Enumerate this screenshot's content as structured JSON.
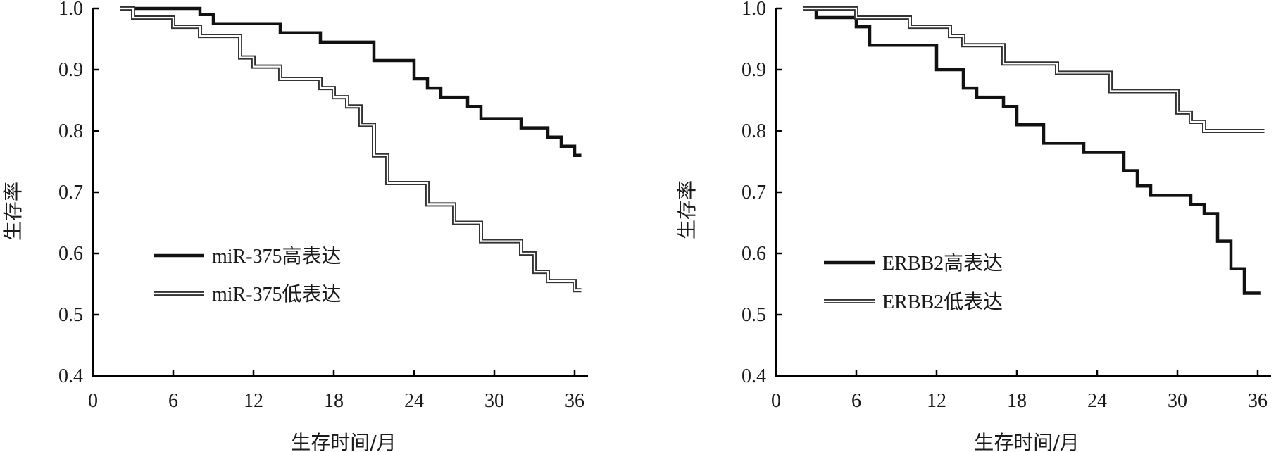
{
  "chart_data": [
    {
      "type": "line",
      "step": true,
      "title": "",
      "xlabel": "生存时间/月",
      "ylabel": "生存率",
      "xlim": [
        0,
        37
      ],
      "ylim": [
        0.4,
        1.0
      ],
      "xticks": [
        "0",
        "6",
        "12",
        "18",
        "24",
        "30",
        "36"
      ],
      "yticks": [
        "0.4",
        "0.5",
        "0.6",
        "0.7",
        "0.8",
        "0.9",
        "1.0"
      ],
      "legend_position": "lower-left",
      "series": [
        {
          "name": "miR-375高表达",
          "style": "solid",
          "color": "#111111",
          "x": [
            2,
            8,
            9,
            14,
            17,
            21,
            24,
            25,
            26,
            28,
            29,
            32,
            34,
            35,
            36,
            36.5
          ],
          "y": [
            1.0,
            0.99,
            0.975,
            0.96,
            0.945,
            0.915,
            0.885,
            0.87,
            0.855,
            0.84,
            0.82,
            0.805,
            0.79,
            0.775,
            0.76,
            0.76
          ]
        },
        {
          "name": "miR-375低表达",
          "style": "double",
          "color": "#333333",
          "x": [
            2,
            3,
            6,
            8,
            11,
            12,
            14,
            17,
            18,
            19,
            20,
            21,
            22,
            25,
            27,
            29,
            32,
            33,
            34,
            36,
            36.5
          ],
          "y": [
            1.0,
            0.985,
            0.97,
            0.955,
            0.92,
            0.905,
            0.885,
            0.87,
            0.855,
            0.84,
            0.81,
            0.76,
            0.715,
            0.68,
            0.65,
            0.62,
            0.6,
            0.57,
            0.555,
            0.54,
            0.54
          ]
        }
      ]
    },
    {
      "type": "line",
      "step": true,
      "title": "",
      "xlabel": "生存时间/月",
      "ylabel": "生存率",
      "xlim": [
        0,
        37
      ],
      "ylim": [
        0.4,
        1.0
      ],
      "xticks": [
        "0",
        "6",
        "12",
        "18",
        "24",
        "30",
        "36"
      ],
      "yticks": [
        "0.4",
        "0.5",
        "0.6",
        "0.7",
        "0.8",
        "0.9",
        "1.0"
      ],
      "legend_position": "lower-left",
      "series": [
        {
          "name": "ERBB2高表达",
          "style": "solid",
          "color": "#111111",
          "x": [
            2,
            3,
            6,
            7,
            12,
            14,
            15,
            17,
            18,
            20,
            23,
            26,
            27,
            28,
            31,
            32,
            33,
            34,
            35,
            36.2
          ],
          "y": [
            1.0,
            0.985,
            0.97,
            0.94,
            0.9,
            0.87,
            0.855,
            0.84,
            0.81,
            0.78,
            0.765,
            0.735,
            0.71,
            0.695,
            0.68,
            0.665,
            0.62,
            0.575,
            0.535,
            0.535
          ]
        },
        {
          "name": "ERBB2低表达",
          "style": "double",
          "color": "#333333",
          "x": [
            2,
            6,
            10,
            13,
            14,
            17,
            21,
            25,
            30,
            31,
            32,
            36.5
          ],
          "y": [
            1.0,
            0.985,
            0.97,
            0.955,
            0.94,
            0.91,
            0.895,
            0.865,
            0.83,
            0.815,
            0.8,
            0.8
          ]
        }
      ]
    }
  ]
}
